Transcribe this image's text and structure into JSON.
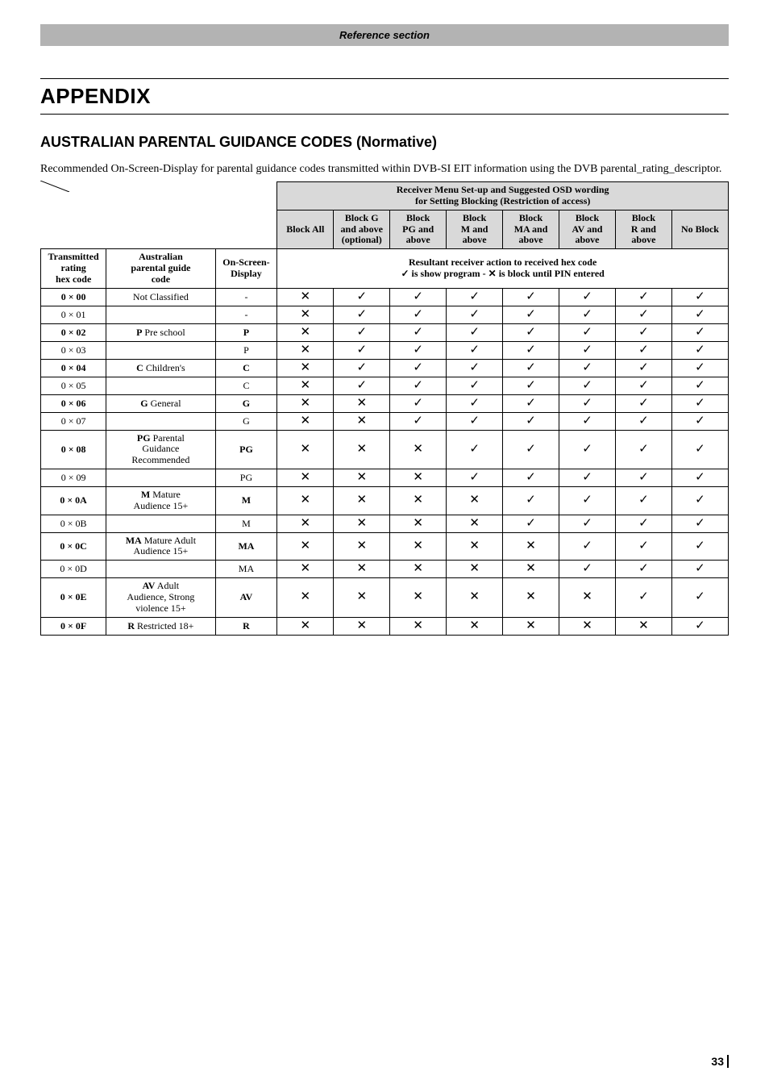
{
  "banner": "Reference section",
  "title": "APPENDIX",
  "subtitle": "AUSTRALIAN PARENTAL GUIDANCE CODES (Normative)",
  "intro": "Recommended On-Screen-Display for parental guidance codes transmitted within DVB-SI EIT information using the DVB parental_rating_descriptor.",
  "header": {
    "top_span_1": "Receiver Menu Set-up and Suggested OSD wording",
    "top_span_2": "for Setting Blocking (Restriction of access)",
    "block_all": "Block All",
    "block_g_1": "Block G",
    "block_g_2": "and above",
    "block_g_3": "(optional)",
    "block_pg_1": "Block",
    "block_pg_2": "PG and",
    "block_pg_3": "above",
    "block_m_1": "Block",
    "block_m_2": "M and",
    "block_m_3": "above",
    "block_ma_1": "Block",
    "block_ma_2": "MA and",
    "block_ma_3": "above",
    "block_av_1": "Block",
    "block_av_2": "AV and",
    "block_av_3": "above",
    "block_r_1": "Block",
    "block_r_2": "R and",
    "block_r_3": "above",
    "no_block": "No Block",
    "left_h1": "Transmitted",
    "left_h1b": "rating",
    "left_h1c": "hex code",
    "left_h2": "Australian",
    "left_h2b": "parental guide",
    "left_h2c": "code",
    "left_h3": "On-Screen-",
    "left_h3b": "Display",
    "resultant_1": "Resultant receiver action to received hex code",
    "resultant_2": "✓ is show program - ✕ is block until PIN entered"
  },
  "icons": {
    "y": "✓",
    "n": "✕"
  },
  "rows": [
    {
      "hex_pre": "0 × ",
      "hex": "00",
      "hex_bold": true,
      "label": "Not Classified",
      "label_bold": false,
      "osd": "-",
      "osd_bold": false,
      "c": [
        "n",
        "y",
        "y",
        "y",
        "y",
        "y",
        "y",
        "y"
      ]
    },
    {
      "hex_pre": "0 × ",
      "hex": "01",
      "hex_bold": false,
      "label": "",
      "label_bold": false,
      "osd": "-",
      "osd_bold": false,
      "c": [
        "n",
        "y",
        "y",
        "y",
        "y",
        "y",
        "y",
        "y"
      ]
    },
    {
      "hex_pre": "0 × ",
      "hex": "02",
      "hex_bold": true,
      "label": "P Pre school",
      "label_first": "P",
      "label_rest": " Pre school",
      "osd": "P",
      "osd_bold": true,
      "c": [
        "n",
        "y",
        "y",
        "y",
        "y",
        "y",
        "y",
        "y"
      ]
    },
    {
      "hex_pre": "0 × ",
      "hex": "03",
      "hex_bold": false,
      "label": "",
      "osd": "P",
      "osd_bold": false,
      "c": [
        "n",
        "y",
        "y",
        "y",
        "y",
        "y",
        "y",
        "y"
      ]
    },
    {
      "hex_pre": "0 × ",
      "hex": "04",
      "hex_bold": true,
      "label_first": "C",
      "label_rest": " Children's",
      "osd": "C",
      "osd_bold": true,
      "c": [
        "n",
        "y",
        "y",
        "y",
        "y",
        "y",
        "y",
        "y"
      ]
    },
    {
      "hex_pre": "0 × ",
      "hex": "05",
      "hex_bold": false,
      "label": "",
      "osd": "C",
      "osd_bold": false,
      "c": [
        "n",
        "y",
        "y",
        "y",
        "y",
        "y",
        "y",
        "y"
      ]
    },
    {
      "hex_pre": "0 × ",
      "hex": "06",
      "hex_bold": true,
      "label_first": "G",
      "label_rest": " General",
      "osd": "G",
      "osd_bold": true,
      "c": [
        "n",
        "n",
        "y",
        "y",
        "y",
        "y",
        "y",
        "y"
      ]
    },
    {
      "hex_pre": "0 × ",
      "hex": "07",
      "hex_bold": false,
      "label": "",
      "osd": "G",
      "osd_bold": false,
      "c": [
        "n",
        "n",
        "y",
        "y",
        "y",
        "y",
        "y",
        "y"
      ]
    },
    {
      "hex_pre": "0 × ",
      "hex": "08",
      "hex_bold": true,
      "label_multiline": true,
      "label_first": "PG",
      "label_rest_l1": " Parental",
      "label_rest_l2": "Guidance",
      "label_rest_l3": "Recommended",
      "osd": "PG",
      "osd_bold": true,
      "c": [
        "n",
        "n",
        "n",
        "y",
        "y",
        "y",
        "y",
        "y"
      ]
    },
    {
      "hex_pre": "0 × ",
      "hex": "09",
      "hex_bold": false,
      "label": "",
      "osd": "PG",
      "osd_bold": false,
      "c": [
        "n",
        "n",
        "n",
        "y",
        "y",
        "y",
        "y",
        "y"
      ]
    },
    {
      "hex_pre": "0 × ",
      "hex": "0A",
      "hex_bold": true,
      "label_multiline": true,
      "label_first": "M",
      "label_rest_l1": " Mature",
      "label_rest_l2": "Audience 15+",
      "osd": "M",
      "osd_bold": true,
      "c": [
        "n",
        "n",
        "n",
        "n",
        "y",
        "y",
        "y",
        "y"
      ]
    },
    {
      "hex_pre": "0 × ",
      "hex": "0B",
      "hex_bold": false,
      "label": "",
      "osd": "M",
      "osd_bold": false,
      "c": [
        "n",
        "n",
        "n",
        "n",
        "y",
        "y",
        "y",
        "y"
      ]
    },
    {
      "hex_pre": "0 × ",
      "hex": "0C",
      "hex_bold": true,
      "label_multiline": true,
      "label_first": "MA",
      "label_rest_l1": " Mature Adult",
      "label_rest_l2": "Audience 15+",
      "osd": "MA",
      "osd_bold": true,
      "c": [
        "n",
        "n",
        "n",
        "n",
        "n",
        "y",
        "y",
        "y"
      ]
    },
    {
      "hex_pre": "0 × ",
      "hex": "0D",
      "hex_bold": false,
      "label": "",
      "osd": "MA",
      "osd_bold": false,
      "c": [
        "n",
        "n",
        "n",
        "n",
        "n",
        "y",
        "y",
        "y"
      ]
    },
    {
      "hex_pre": "0 × ",
      "hex": "0E",
      "hex_bold": true,
      "label_multiline": true,
      "label_first": "AV",
      "label_rest_l1": " Adult",
      "label_rest_l2": "Audience,  Strong",
      "label_rest_l3": "violence  15+",
      "osd": "AV",
      "osd_bold": true,
      "c": [
        "n",
        "n",
        "n",
        "n",
        "n",
        "n",
        "y",
        "y"
      ]
    },
    {
      "hex_pre": "0 × ",
      "hex": "0F",
      "hex_bold": true,
      "label_first": "R",
      "label_rest": " Restricted 18+",
      "osd": "R",
      "osd_bold": true,
      "c": [
        "n",
        "n",
        "n",
        "n",
        "n",
        "n",
        "n",
        "y"
      ]
    }
  ],
  "page_number": "33"
}
